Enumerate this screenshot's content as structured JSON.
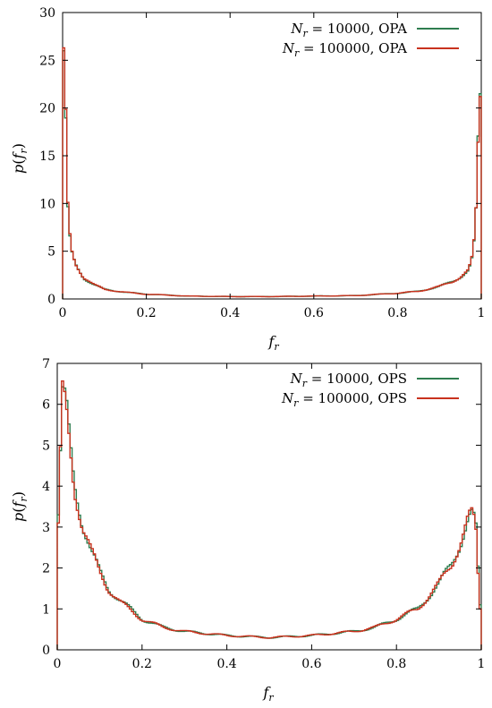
{
  "chart_data": [
    {
      "type": "line",
      "title": "",
      "xlabel": "f_r",
      "ylabel": "p(f_r)",
      "xlim": [
        0,
        1
      ],
      "ylim": [
        0,
        30
      ],
      "x_ticks": [
        "0",
        "0.2",
        "0.4",
        "0.6",
        "0.8",
        "1"
      ],
      "y_ticks": [
        "0",
        "5",
        "10",
        "15",
        "20",
        "25",
        "30"
      ],
      "grid": false,
      "legend_position": "top-right",
      "step": true,
      "bin_width": 0.005,
      "series": [
        {
          "name": "N_r = 10000, OPA",
          "legend_main": "N",
          "legend_sub": "r",
          "legend_rest": " = 10000, OPA",
          "color": "#2e7d4f",
          "x": [
            0.0,
            0.005,
            0.01,
            0.015,
            0.02,
            0.03,
            0.05,
            0.075,
            0.1,
            0.15,
            0.2,
            0.3,
            0.4,
            0.5,
            0.6,
            0.7,
            0.8,
            0.85,
            0.9,
            0.93,
            0.95,
            0.97,
            0.98,
            0.985,
            0.99,
            0.995,
            1.0
          ],
          "values": [
            0,
            26.0,
            11.0,
            7.5,
            5.0,
            3.6,
            2.2,
            1.5,
            1.0,
            0.7,
            0.5,
            0.3,
            0.25,
            0.25,
            0.3,
            0.35,
            0.6,
            0.8,
            1.3,
            1.8,
            2.3,
            3.0,
            4.5,
            7.0,
            11.0,
            21.5,
            0
          ]
        },
        {
          "name": "N_r = 100000, OPA",
          "legend_main": "N",
          "legend_sub": "r",
          "legend_rest": " = 100000, OPA",
          "color": "#c8321e",
          "x": [
            0.0,
            0.005,
            0.01,
            0.015,
            0.02,
            0.03,
            0.05,
            0.075,
            0.1,
            0.15,
            0.2,
            0.3,
            0.4,
            0.5,
            0.6,
            0.7,
            0.8,
            0.85,
            0.9,
            0.93,
            0.95,
            0.97,
            0.98,
            0.985,
            0.99,
            0.995,
            1.0
          ],
          "values": [
            0,
            26.3,
            11.3,
            7.8,
            5.2,
            3.7,
            2.3,
            1.5,
            1.0,
            0.7,
            0.5,
            0.3,
            0.25,
            0.25,
            0.3,
            0.35,
            0.6,
            0.8,
            1.3,
            1.8,
            2.3,
            3.0,
            4.6,
            7.2,
            11.3,
            21.2,
            0
          ]
        }
      ]
    },
    {
      "type": "line",
      "title": "",
      "xlabel": "f_r",
      "ylabel": "p(f_r)",
      "xlim": [
        0,
        1
      ],
      "ylim": [
        0,
        7
      ],
      "x_ticks": [
        "0",
        "0.2",
        "0.4",
        "0.6",
        "0.8",
        "1"
      ],
      "y_ticks": [
        "0",
        "1",
        "2",
        "3",
        "4",
        "5",
        "6",
        "7"
      ],
      "grid": false,
      "legend_position": "top-right",
      "step": true,
      "bin_width": 0.005,
      "series": [
        {
          "name": "N_r = 10000, OPS",
          "legend_main": "N",
          "legend_sub": "r",
          "legend_rest": " = 10000, OPS",
          "color": "#2e7d4f",
          "x": [
            0.0,
            0.005,
            0.01,
            0.02,
            0.03,
            0.04,
            0.05,
            0.06,
            0.08,
            0.1,
            0.12,
            0.15,
            0.2,
            0.25,
            0.3,
            0.4,
            0.5,
            0.6,
            0.7,
            0.75,
            0.8,
            0.85,
            0.9,
            0.93,
            0.95,
            0.97,
            0.98,
            0.99,
            0.995,
            1.0
          ],
          "values": [
            0,
            3.3,
            6.2,
            6.0,
            5.0,
            4.1,
            3.6,
            3.1,
            2.4,
            1.9,
            1.5,
            1.2,
            0.75,
            0.55,
            0.45,
            0.35,
            0.3,
            0.35,
            0.45,
            0.55,
            0.75,
            1.0,
            1.6,
            2.1,
            2.6,
            3.2,
            3.3,
            2.8,
            1.1,
            0
          ]
        },
        {
          "name": "N_r = 100000, OPS",
          "legend_main": "N",
          "legend_sub": "r",
          "legend_rest": " = 100000, OPS",
          "color": "#c8321e",
          "x": [
            0.0,
            0.005,
            0.01,
            0.02,
            0.03,
            0.04,
            0.05,
            0.06,
            0.08,
            0.1,
            0.12,
            0.15,
            0.2,
            0.25,
            0.3,
            0.4,
            0.5,
            0.6,
            0.7,
            0.75,
            0.8,
            0.85,
            0.9,
            0.93,
            0.95,
            0.97,
            0.98,
            0.99,
            0.995,
            1.0
          ],
          "values": [
            0,
            3.1,
            6.3,
            5.9,
            5.0,
            4.0,
            3.5,
            3.0,
            2.4,
            1.9,
            1.5,
            1.15,
            0.75,
            0.55,
            0.45,
            0.35,
            0.3,
            0.35,
            0.45,
            0.55,
            0.75,
            1.0,
            1.6,
            2.1,
            2.6,
            3.2,
            3.3,
            2.7,
            1.0,
            0
          ]
        }
      ]
    }
  ]
}
